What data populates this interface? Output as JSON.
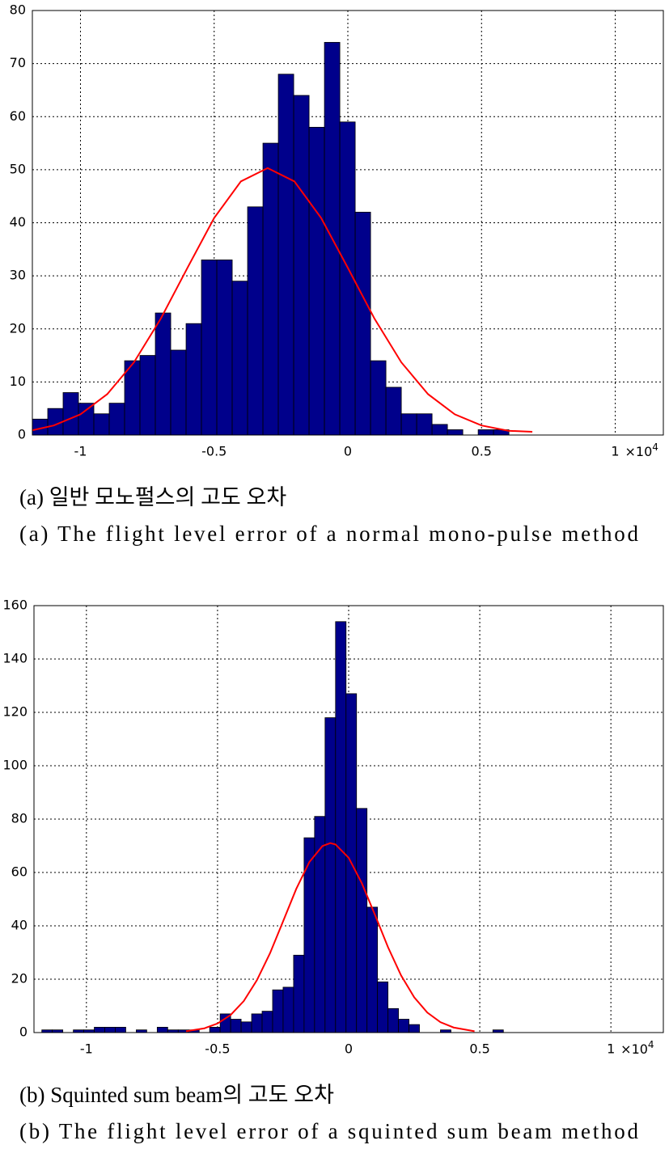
{
  "chart_data": [
    {
      "type": "histogram",
      "color": "#00008b",
      "edgecolor": "#000000",
      "grid": true,
      "xlim": [
        -1.18,
        1.18
      ],
      "ylim": [
        0,
        80
      ],
      "xticks": [
        -1,
        -0.5,
        0,
        0.5,
        1
      ],
      "yticks": [
        0,
        10,
        20,
        30,
        40,
        50,
        60,
        70,
        80
      ],
      "x_exponent": {
        "base": "×10",
        "power": "4"
      },
      "bins": [
        -1.18,
        -1.1225,
        -1.065,
        -1.0075,
        -0.95,
        -0.8925,
        -0.835,
        -0.7775,
        -0.72,
        -0.6625,
        -0.605,
        -0.5475,
        -0.49,
        -0.4325,
        -0.375,
        -0.3175,
        -0.26,
        -0.2025,
        -0.145,
        -0.0875,
        -0.03,
        0.0275,
        0.085,
        0.1425,
        0.2,
        0.2575,
        0.315,
        0.3725,
        0.43,
        0.4875,
        0.545,
        0.6025
      ],
      "values": [
        3,
        5,
        8,
        6,
        4,
        6,
        14,
        15,
        23,
        16,
        21,
        33,
        33,
        29,
        43,
        55,
        68,
        64,
        58,
        74,
        59,
        42,
        14,
        9,
        4,
        4,
        2,
        1,
        0,
        1,
        1
      ],
      "fit": {
        "color": "#ff0000",
        "x": [
          -1.18,
          -1.1,
          -1.0,
          -0.9,
          -0.8,
          -0.7,
          -0.6,
          -0.5,
          -0.4,
          -0.3,
          -0.2,
          -0.1,
          0,
          0.1,
          0.2,
          0.3,
          0.4,
          0.5,
          0.6,
          0.69
        ],
        "y": [
          0.9,
          1.8,
          3.9,
          7.7,
          13.7,
          21.9,
          31.5,
          40.9,
          47.8,
          50.3,
          47.8,
          40.9,
          31.5,
          21.9,
          13.7,
          7.7,
          3.9,
          1.8,
          0.8,
          0.6
        ]
      },
      "captions": [
        "(a) 일반 모노펄스의 고도 오차",
        "(a) The flight level error of a normal mono-pulse method"
      ]
    },
    {
      "type": "histogram",
      "color": "#00008b",
      "edgecolor": "#000000",
      "grid": true,
      "xlim": [
        -1.2,
        1.2
      ],
      "ylim": [
        0,
        160
      ],
      "xticks": [
        -1,
        -0.5,
        0,
        0.5,
        1
      ],
      "yticks": [
        0,
        20,
        40,
        60,
        80,
        100,
        120,
        140,
        160
      ],
      "x_exponent": {
        "base": "×10",
        "power": "4"
      },
      "bins": [
        -1.17,
        -1.13,
        -1.09,
        -1.05,
        -1.01,
        -0.97,
        -0.93,
        -0.89,
        -0.85,
        -0.81,
        -0.77,
        -0.73,
        -0.69,
        -0.65,
        -0.61,
        -0.57,
        -0.53,
        -0.49,
        -0.45,
        -0.41,
        -0.37,
        -0.33,
        -0.29,
        -0.25,
        -0.21,
        -0.17,
        -0.13,
        -0.09,
        -0.05,
        -0.01,
        0.03,
        0.07,
        0.11,
        0.15,
        0.19,
        0.23,
        0.27,
        0.31,
        0.35,
        0.39,
        0.43,
        0.47,
        0.51,
        0.55,
        0.59
      ],
      "values": [
        1,
        1,
        0,
        1,
        1,
        2,
        2,
        2,
        0,
        1,
        0,
        2,
        1,
        1,
        1,
        0,
        2,
        7,
        5,
        4,
        7,
        8,
        16,
        17,
        29,
        73,
        81,
        118,
        154,
        127,
        84,
        47,
        19,
        9,
        5,
        3,
        0,
        0,
        1,
        0,
        0,
        0,
        0,
        1
      ],
      "fit": {
        "color": "#ff0000",
        "x": [
          -0.62,
          -0.55,
          -0.5,
          -0.45,
          -0.4,
          -0.35,
          -0.3,
          -0.25,
          -0.2,
          -0.15,
          -0.1,
          -0.07,
          -0.05,
          0,
          0.05,
          0.1,
          0.15,
          0.2,
          0.25,
          0.3,
          0.35,
          0.4,
          0.48
        ],
        "y": [
          0.5,
          1.6,
          3.4,
          6.6,
          11.8,
          19.6,
          29.7,
          41.7,
          53.8,
          63.9,
          69.9,
          71,
          70.5,
          65.5,
          56.0,
          44.2,
          32.0,
          21.4,
          13.2,
          7.5,
          3.9,
          1.9,
          0.5
        ]
      },
      "captions": [
        "(b) Squinted sum beam의 고도 오차",
        "(b) The flight level error of a squinted sum beam method"
      ]
    }
  ]
}
